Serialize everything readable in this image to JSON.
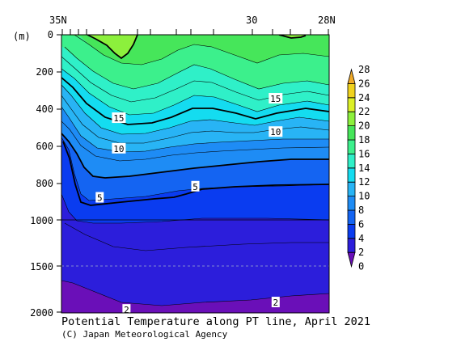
{
  "chart_data": {
    "type": "contour",
    "title": "Potential Temperature along PT line, April 2021",
    "credit": "(C) Japan Meteorological Agency",
    "y_unit_label": "(m)",
    "x_ticks": [
      "35N",
      "30",
      "28N"
    ],
    "y_ticks": [
      "0",
      "200",
      "400",
      "600",
      "800",
      "1000",
      "1500",
      "2000"
    ],
    "colorbar_levels": [
      "0",
      "2",
      "4",
      "6",
      "8",
      "10",
      "12",
      "14",
      "16",
      "18",
      "20",
      "22",
      "24",
      "26",
      "28"
    ],
    "colorbar_colors": [
      "#6a0fb8",
      "#2c1edb",
      "#0a3cf0",
      "#1464f2",
      "#1e8cf5",
      "#28b4f5",
      "#14dcf0",
      "#2ff0c8",
      "#3cf08c",
      "#46e65a",
      "#8cf03c",
      "#dcf028",
      "#f0d21e",
      "#f0aa28"
    ],
    "contour_labels": [
      {
        "text": "15",
        "lat": 33.5,
        "depth": 450
      },
      {
        "text": "15",
        "lat": 29.4,
        "depth": 345
      },
      {
        "text": "10",
        "lat": 33.5,
        "depth": 615
      },
      {
        "text": "10",
        "lat": 29.4,
        "depth": 525
      },
      {
        "text": "5",
        "lat": 34.0,
        "depth": 880
      },
      {
        "text": "5",
        "lat": 31.5,
        "depth": 820
      },
      {
        "text": "2",
        "lat": 33.3,
        "depth": 1975
      },
      {
        "text": "2",
        "lat": 29.4,
        "depth": 1895
      }
    ]
  }
}
